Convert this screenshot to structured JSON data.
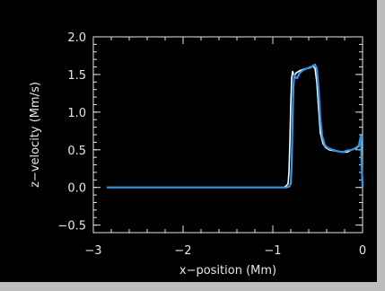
{
  "chart_data": {
    "type": "line",
    "title": "",
    "xlabel": "x−position (Mm)",
    "ylabel": "z−velocity (Mm/s)",
    "xlim": [
      -3,
      0
    ],
    "ylim": [
      -0.6,
      2.0
    ],
    "xticks": [
      -3,
      -2,
      -1,
      0
    ],
    "xtick_labels": [
      "−3",
      "−2",
      "−1",
      "0"
    ],
    "yticks": [
      -0.5,
      0.0,
      0.5,
      1.0,
      1.5,
      2.0
    ],
    "ytick_labels": [
      "−0.5",
      "0.0",
      "0.5",
      "1.0",
      "1.5",
      "2.0"
    ],
    "grid": false,
    "series": [
      {
        "color": "#ffffff",
        "x": [
          -2.85,
          -2.0,
          -1.0,
          -0.88,
          -0.85,
          -0.83,
          -0.82,
          -0.81,
          -0.8,
          -0.79,
          -0.78,
          -0.76,
          -0.74,
          -0.7,
          -0.66,
          -0.62,
          -0.58,
          -0.55,
          -0.53,
          -0.51,
          -0.49,
          -0.47,
          -0.44,
          -0.41,
          -0.37,
          -0.33,
          -0.28,
          -0.22,
          -0.17,
          -0.12,
          -0.07,
          -0.04,
          -0.02,
          -0.01,
          0.0
        ],
        "y": [
          0.0,
          0.0,
          0.0,
          0.0,
          0.02,
          0.05,
          0.2,
          0.6,
          1.1,
          1.45,
          1.54,
          1.48,
          1.52,
          1.55,
          1.57,
          1.58,
          1.6,
          1.61,
          1.58,
          1.4,
          1.05,
          0.72,
          0.58,
          0.53,
          0.5,
          0.49,
          0.48,
          0.47,
          0.47,
          0.5,
          0.52,
          0.55,
          0.62,
          0.45,
          0.05
        ]
      },
      {
        "color": "#2f97e8",
        "x": [
          -2.85,
          -2.0,
          -1.0,
          -0.85,
          -0.82,
          -0.8,
          -0.79,
          -0.78,
          -0.77,
          -0.76,
          -0.75,
          -0.73,
          -0.7,
          -0.66,
          -0.62,
          -0.58,
          -0.55,
          -0.53,
          -0.51,
          -0.49,
          -0.47,
          -0.45,
          -0.42,
          -0.38,
          -0.33,
          -0.28,
          -0.22,
          -0.17,
          -0.12,
          -0.07,
          -0.04,
          -0.02,
          -0.01,
          0.0
        ],
        "y": [
          0.0,
          0.0,
          0.0,
          0.0,
          0.01,
          0.05,
          0.3,
          0.9,
          1.35,
          1.5,
          1.46,
          1.45,
          1.52,
          1.56,
          1.58,
          1.59,
          1.62,
          1.63,
          1.58,
          1.3,
          0.9,
          0.68,
          0.56,
          0.52,
          0.5,
          0.48,
          0.47,
          0.49,
          0.5,
          0.53,
          0.56,
          0.68,
          0.3,
          0.0
        ]
      }
    ]
  }
}
